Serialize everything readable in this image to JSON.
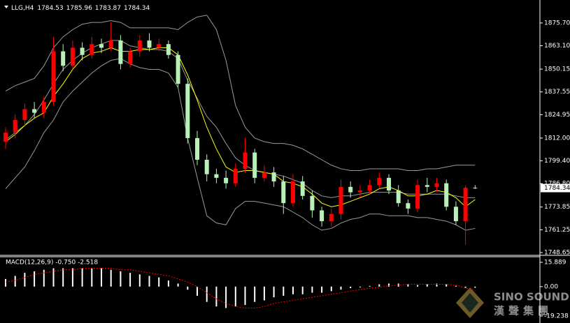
{
  "chart_data": [
    {
      "type": "candlestick",
      "symbol": "LLG,H4",
      "open": [
        1810,
        1815,
        1822,
        1828,
        1826,
        1832,
        1860,
        1852,
        1862,
        1858,
        1864,
        1862,
        1866,
        1853,
        1860,
        1866,
        1862,
        1864,
        1858,
        1842,
        1812,
        1800,
        1792,
        1790,
        1787,
        1795,
        1804,
        1790,
        1793,
        1788,
        1776,
        1788,
        1780,
        1772,
        1766,
        1770,
        1785,
        1782,
        1783,
        1786,
        1790,
        1783,
        1776,
        1773,
        1786,
        1785,
        1787,
        1774,
        1766,
        1784.53
      ],
      "high": [
        1818,
        1825,
        1831,
        1832,
        1835,
        1868,
        1864,
        1866,
        1865,
        1868,
        1867,
        1876,
        1869,
        1862,
        1869,
        1870,
        1867,
        1866,
        1860,
        1845,
        1816,
        1803,
        1795,
        1794,
        1798,
        1812,
        1806,
        1797,
        1796,
        1791,
        1792,
        1791,
        1783,
        1774,
        1773,
        1789,
        1788,
        1786,
        1789,
        1793,
        1792,
        1786,
        1778,
        1789,
        1790,
        1790,
        1789,
        1777,
        1786,
        1785.96
      ],
      "low": [
        1806,
        1812,
        1819,
        1823,
        1823,
        1830,
        1849,
        1850,
        1855,
        1856,
        1859,
        1860,
        1850,
        1851,
        1857,
        1860,
        1860,
        1856,
        1840,
        1809,
        1797,
        1788,
        1787,
        1784,
        1785,
        1793,
        1787,
        1788,
        1785,
        1770,
        1774,
        1778,
        1768,
        1763,
        1763,
        1767,
        1779,
        1779,
        1781,
        1784,
        1781,
        1774,
        1770,
        1771,
        1782,
        1782,
        1772,
        1764,
        1753,
        1783.87
      ],
      "close": [
        1815,
        1822,
        1828,
        1826,
        1832,
        1860,
        1852,
        1862,
        1858,
        1864,
        1862,
        1866,
        1853,
        1860,
        1866,
        1862,
        1864,
        1858,
        1842,
        1812,
        1800,
        1792,
        1790,
        1787,
        1795,
        1804,
        1790,
        1793,
        1788,
        1776,
        1788,
        1780,
        1772,
        1766,
        1770,
        1785,
        1782,
        1783,
        1786,
        1790,
        1783,
        1776,
        1773,
        1786,
        1785,
        1787,
        1774,
        1766,
        1784.53,
        1784.34
      ],
      "up_color": "#ff0000",
      "down_color": "#b8f0b8",
      "series": [
        {
          "name": "upper",
          "color": "#9a9a9a",
          "values": [
            1838,
            1841,
            1843,
            1845,
            1852,
            1862,
            1868,
            1872,
            1875,
            1876,
            1876,
            1877,
            1876,
            1873,
            1873,
            1873,
            1873,
            1873,
            1872,
            1876,
            1879,
            1880,
            1872,
            1855,
            1830,
            1818,
            1812,
            1810,
            1809,
            1809,
            1808,
            1806,
            1803,
            1800,
            1797,
            1795,
            1794,
            1794,
            1795,
            1795,
            1795,
            1795,
            1794,
            1794,
            1795,
            1795,
            1796,
            1797,
            1797,
            1797
          ]
        },
        {
          "name": "middle",
          "color": "#9a9a9a",
          "values": [
            1811,
            1815,
            1819,
            1825,
            1833,
            1842,
            1850,
            1855,
            1859,
            1862,
            1864,
            1866,
            1866,
            1863,
            1862,
            1861,
            1861,
            1860,
            1856,
            1844,
            1834,
            1824,
            1818,
            1809,
            1801,
            1797,
            1794,
            1793,
            1792,
            1791,
            1789,
            1787,
            1783,
            1780,
            1779,
            1780,
            1780,
            1781,
            1782,
            1782,
            1782,
            1782,
            1781,
            1781,
            1781,
            1781,
            1781,
            1780,
            1779,
            1779
          ]
        },
        {
          "name": "lower",
          "color": "#9a9a9a",
          "values": [
            1784,
            1790,
            1796,
            1805,
            1815,
            1822,
            1832,
            1838,
            1843,
            1848,
            1852,
            1855,
            1856,
            1853,
            1851,
            1850,
            1850,
            1848,
            1840,
            1812,
            1790,
            1769,
            1765,
            1764,
            1773,
            1777,
            1777,
            1776,
            1775,
            1774,
            1771,
            1768,
            1764,
            1761,
            1762,
            1765,
            1767,
            1768,
            1770,
            1770,
            1769,
            1769,
            1769,
            1768,
            1768,
            1767,
            1766,
            1764,
            1761,
            1762
          ]
        },
        {
          "name": "ma",
          "color": "#ffff00",
          "values": [
            1810,
            1814,
            1819,
            1823,
            1826,
            1835,
            1842,
            1850,
            1856,
            1859,
            1860,
            1862,
            1860,
            1860,
            1861,
            1861,
            1862,
            1862,
            1858,
            1847,
            1833,
            1818,
            1806,
            1796,
            1793,
            1794,
            1794,
            1793,
            1792,
            1788,
            1787,
            1785,
            1781,
            1776,
            1774,
            1775,
            1777,
            1779,
            1781,
            1784,
            1785,
            1783,
            1780,
            1780,
            1781,
            1783,
            1782,
            1779,
            1774,
            1778
          ]
        }
      ],
      "ylim": [
        1747.5,
        1888.4
      ],
      "yticks": [
        {
          "value": 1875.7,
          "label": "1875.70"
        },
        {
          "value": 1863.1,
          "label": "1863.10"
        },
        {
          "value": 1850.15,
          "label": "1850.15"
        },
        {
          "value": 1837.55,
          "label": "1837.55"
        },
        {
          "value": 1824.95,
          "label": "1824.95"
        },
        {
          "value": 1812.0,
          "label": "1812.00"
        },
        {
          "value": 1799.4,
          "label": "1799.40"
        },
        {
          "value": 1786.8,
          "label": "1786.80"
        },
        {
          "value": 1773.85,
          "label": "1773.85"
        },
        {
          "value": 1761.25,
          "label": "1761.25"
        },
        {
          "value": 1748.65,
          "label": "1748.65"
        }
      ]
    },
    {
      "type": "macd",
      "title": "MACD(12,26,9) -0.750 -2.518",
      "series": [
        {
          "name": "histogram",
          "color": "#ffffff",
          "values": [
            5,
            7,
            9,
            10,
            11,
            12,
            12,
            12,
            12,
            12,
            12,
            11,
            10,
            9,
            8,
            7,
            6,
            4,
            2,
            -2,
            -6,
            -10,
            -13,
            -14,
            -13,
            -12,
            -10,
            -9,
            -7,
            -6,
            -5,
            -5,
            -4,
            -4,
            -3,
            -2,
            -1,
            -0.5,
            0.5,
            1.5,
            2,
            2,
            1.5,
            1,
            1.5,
            2,
            1.5,
            0.5,
            -0.8,
            -0.75
          ]
        },
        {
          "name": "signal",
          "color": "#ff0000",
          "values": [
            3,
            4,
            6,
            8,
            9,
            10,
            11,
            11,
            12,
            12,
            12,
            12,
            11,
            11,
            10,
            9,
            8,
            7,
            5,
            3,
            0,
            -4,
            -8,
            -11,
            -13,
            -14,
            -14,
            -13,
            -11,
            -10,
            -9,
            -8,
            -7,
            -6,
            -5,
            -4,
            -3,
            -2,
            -1,
            -0.5,
            0.5,
            1,
            1.5,
            1.5,
            1.5,
            1.5,
            1.5,
            1,
            -1,
            -2.518
          ]
        }
      ],
      "ylim": [
        -23.8,
        20.0
      ],
      "yticks": [
        15.889,
        {
          "value": 0,
          "label": "0.00"
        },
        -19.238
      ]
    }
  ],
  "watermark": {
    "brand": "SINO SOUND",
    "chinese": "漢聲集團"
  }
}
